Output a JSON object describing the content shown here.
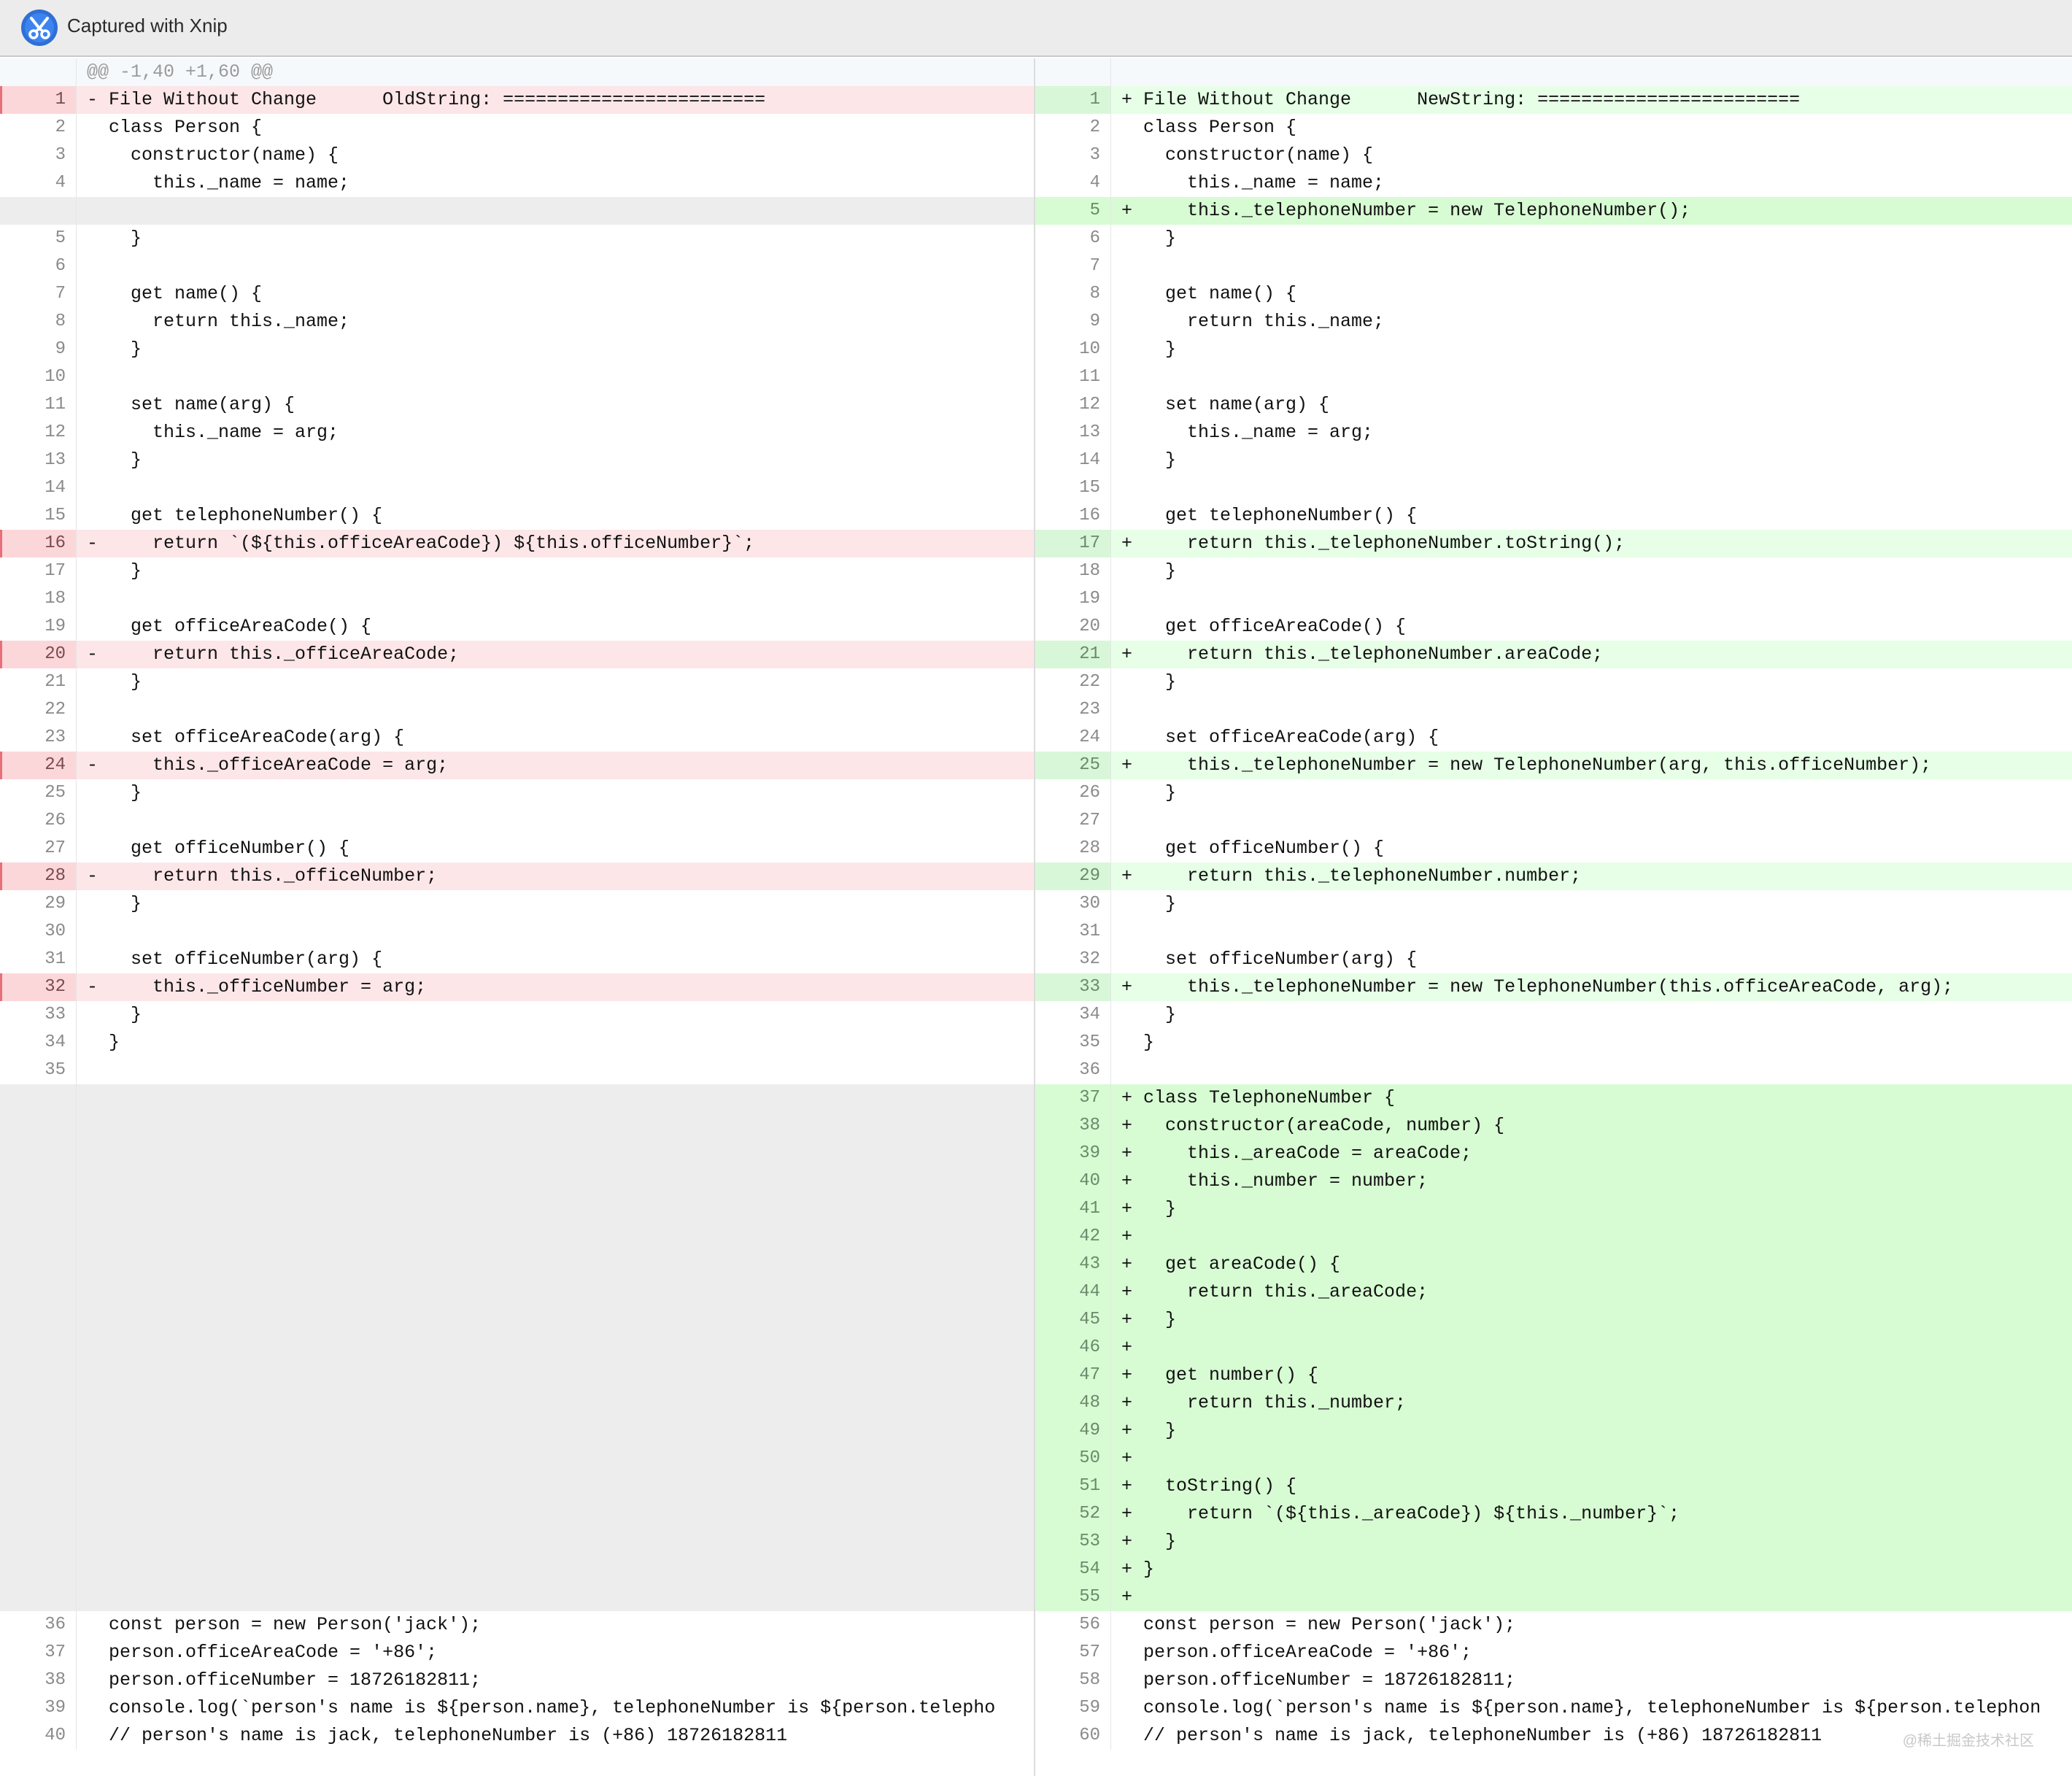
{
  "window": {
    "title": "Captured with Xnip",
    "app_icon": "xnip-scissors-icon",
    "watermark": "@稀土掘金技术社区"
  },
  "diff": {
    "hunk_header": "@@ -1,40 +1,60 @@",
    "rows": [
      {
        "type": "del",
        "l": 1,
        "r": 1,
        "lc": "- File Without Change      OldString: ========================",
        "rc": "+ File Without Change      NewString: ========================"
      },
      {
        "type": "ctx",
        "l": 2,
        "r": 2,
        "lc": "  class Person {",
        "rc": "  class Person {"
      },
      {
        "type": "ctx",
        "l": 3,
        "r": 3,
        "lc": "    constructor(name) {",
        "rc": "    constructor(name) {"
      },
      {
        "type": "ctx",
        "l": 4,
        "r": 4,
        "lc": "      this._name = name;",
        "rc": "      this._name = name;"
      },
      {
        "type": "addonly",
        "l": "",
        "r": 5,
        "lc": "",
        "rc": "+     this._telephoneNumber = new TelephoneNumber();"
      },
      {
        "type": "ctx",
        "l": 5,
        "r": 6,
        "lc": "    }",
        "rc": "    }"
      },
      {
        "type": "ctx",
        "l": 6,
        "r": 7,
        "lc": "",
        "rc": ""
      },
      {
        "type": "ctx",
        "l": 7,
        "r": 8,
        "lc": "    get name() {",
        "rc": "    get name() {"
      },
      {
        "type": "ctx",
        "l": 8,
        "r": 9,
        "lc": "      return this._name;",
        "rc": "      return this._name;"
      },
      {
        "type": "ctx",
        "l": 9,
        "r": 10,
        "lc": "    }",
        "rc": "    }"
      },
      {
        "type": "ctx",
        "l": 10,
        "r": 11,
        "lc": "",
        "rc": ""
      },
      {
        "type": "ctx",
        "l": 11,
        "r": 12,
        "lc": "    set name(arg) {",
        "rc": "    set name(arg) {"
      },
      {
        "type": "ctx",
        "l": 12,
        "r": 13,
        "lc": "      this._name = arg;",
        "rc": "      this._name = arg;"
      },
      {
        "type": "ctx",
        "l": 13,
        "r": 14,
        "lc": "    }",
        "rc": "    }"
      },
      {
        "type": "ctx",
        "l": 14,
        "r": 15,
        "lc": "",
        "rc": ""
      },
      {
        "type": "ctx",
        "l": 15,
        "r": 16,
        "lc": "    get telephoneNumber() {",
        "rc": "    get telephoneNumber() {"
      },
      {
        "type": "del",
        "l": 16,
        "r": 17,
        "lc": "-     return `(${this.officeAreaCode}) ${this.officeNumber}`;",
        "rc": "+     return this._telephoneNumber.toString();"
      },
      {
        "type": "ctx",
        "l": 17,
        "r": 18,
        "lc": "    }",
        "rc": "    }"
      },
      {
        "type": "ctx",
        "l": 18,
        "r": 19,
        "lc": "",
        "rc": ""
      },
      {
        "type": "ctx",
        "l": 19,
        "r": 20,
        "lc": "    get officeAreaCode() {",
        "rc": "    get officeAreaCode() {"
      },
      {
        "type": "del",
        "l": 20,
        "r": 21,
        "lc": "-     return this._officeAreaCode;",
        "rc": "+     return this._telephoneNumber.areaCode;"
      },
      {
        "type": "ctx",
        "l": 21,
        "r": 22,
        "lc": "    }",
        "rc": "    }"
      },
      {
        "type": "ctx",
        "l": 22,
        "r": 23,
        "lc": "",
        "rc": ""
      },
      {
        "type": "ctx",
        "l": 23,
        "r": 24,
        "lc": "    set officeAreaCode(arg) {",
        "rc": "    set officeAreaCode(arg) {"
      },
      {
        "type": "del",
        "l": 24,
        "r": 25,
        "lc": "-     this._officeAreaCode = arg;",
        "rc": "+     this._telephoneNumber = new TelephoneNumber(arg, this.officeNumber);"
      },
      {
        "type": "ctx",
        "l": 25,
        "r": 26,
        "lc": "    }",
        "rc": "    }"
      },
      {
        "type": "ctx",
        "l": 26,
        "r": 27,
        "lc": "",
        "rc": ""
      },
      {
        "type": "ctx",
        "l": 27,
        "r": 28,
        "lc": "    get officeNumber() {",
        "rc": "    get officeNumber() {"
      },
      {
        "type": "del",
        "l": 28,
        "r": 29,
        "lc": "-     return this._officeNumber;",
        "rc": "+     return this._telephoneNumber.number;"
      },
      {
        "type": "ctx",
        "l": 29,
        "r": 30,
        "lc": "    }",
        "rc": "    }"
      },
      {
        "type": "ctx",
        "l": 30,
        "r": 31,
        "lc": "",
        "rc": ""
      },
      {
        "type": "ctx",
        "l": 31,
        "r": 32,
        "lc": "    set officeNumber(arg) {",
        "rc": "    set officeNumber(arg) {"
      },
      {
        "type": "del",
        "l": 32,
        "r": 33,
        "lc": "-     this._officeNumber = arg;",
        "rc": "+     this._telephoneNumber = new TelephoneNumber(this.officeAreaCode, arg);"
      },
      {
        "type": "ctx",
        "l": 33,
        "r": 34,
        "lc": "    }",
        "rc": "    }"
      },
      {
        "type": "ctx",
        "l": 34,
        "r": 35,
        "lc": "  }",
        "rc": "  }"
      },
      {
        "type": "ctx",
        "l": 35,
        "r": 36,
        "lc": "",
        "rc": ""
      },
      {
        "type": "addonly",
        "l": "",
        "r": 37,
        "lc": "",
        "rc": "+ class TelephoneNumber {"
      },
      {
        "type": "addonly",
        "l": "",
        "r": 38,
        "lc": "",
        "rc": "+   constructor(areaCode, number) {"
      },
      {
        "type": "addonly",
        "l": "",
        "r": 39,
        "lc": "",
        "rc": "+     this._areaCode = areaCode;"
      },
      {
        "type": "addonly",
        "l": "",
        "r": 40,
        "lc": "",
        "rc": "+     this._number = number;"
      },
      {
        "type": "addonly",
        "l": "",
        "r": 41,
        "lc": "",
        "rc": "+   }"
      },
      {
        "type": "addonly",
        "l": "",
        "r": 42,
        "lc": "",
        "rc": "+"
      },
      {
        "type": "addonly",
        "l": "",
        "r": 43,
        "lc": "",
        "rc": "+   get areaCode() {"
      },
      {
        "type": "addonly",
        "l": "",
        "r": 44,
        "lc": "",
        "rc": "+     return this._areaCode;"
      },
      {
        "type": "addonly",
        "l": "",
        "r": 45,
        "lc": "",
        "rc": "+   }"
      },
      {
        "type": "addonly",
        "l": "",
        "r": 46,
        "lc": "",
        "rc": "+"
      },
      {
        "type": "addonly",
        "l": "",
        "r": 47,
        "lc": "",
        "rc": "+   get number() {"
      },
      {
        "type": "addonly",
        "l": "",
        "r": 48,
        "lc": "",
        "rc": "+     return this._number;"
      },
      {
        "type": "addonly",
        "l": "",
        "r": 49,
        "lc": "",
        "rc": "+   }"
      },
      {
        "type": "addonly",
        "l": "",
        "r": 50,
        "lc": "",
        "rc": "+"
      },
      {
        "type": "addonly",
        "l": "",
        "r": 51,
        "lc": "",
        "rc": "+   toString() {"
      },
      {
        "type": "addonly",
        "l": "",
        "r": 52,
        "lc": "",
        "rc": "+     return `(${this._areaCode}) ${this._number}`;"
      },
      {
        "type": "addonly",
        "l": "",
        "r": 53,
        "lc": "",
        "rc": "+   }"
      },
      {
        "type": "addonly",
        "l": "",
        "r": 54,
        "lc": "",
        "rc": "+ }"
      },
      {
        "type": "addonly",
        "l": "",
        "r": 55,
        "lc": "",
        "rc": "+"
      },
      {
        "type": "ctx",
        "l": 36,
        "r": 56,
        "lc": "  const person = new Person('jack');",
        "rc": "  const person = new Person('jack');"
      },
      {
        "type": "ctx",
        "l": 37,
        "r": 57,
        "lc": "  person.officeAreaCode = '+86';",
        "rc": "  person.officeAreaCode = '+86';"
      },
      {
        "type": "ctx",
        "l": 38,
        "r": 58,
        "lc": "  person.officeNumber = 18726182811;",
        "rc": "  person.officeNumber = 18726182811;"
      },
      {
        "type": "ctx",
        "l": 39,
        "r": 59,
        "lc": "  console.log(`person's name is ${person.name}, telephoneNumber is ${person.telepho",
        "rc": "  console.log(`person's name is ${person.name}, telephoneNumber is ${person.telephon"
      },
      {
        "type": "ctx",
        "l": 40,
        "r": 60,
        "lc": "  // person's name is jack, telephoneNumber is (+86) 18726182811",
        "rc": "  // person's name is jack, telephoneNumber is (+86) 18726182811"
      }
    ]
  },
  "colors": {
    "deleted_line": "#fde6e8",
    "deleted_word": "#f5a9b0",
    "added_line": "#e6ffe6",
    "added_block": "#d7fbd3",
    "added_word": "#9ff09a",
    "empty_side": "#ededed"
  }
}
